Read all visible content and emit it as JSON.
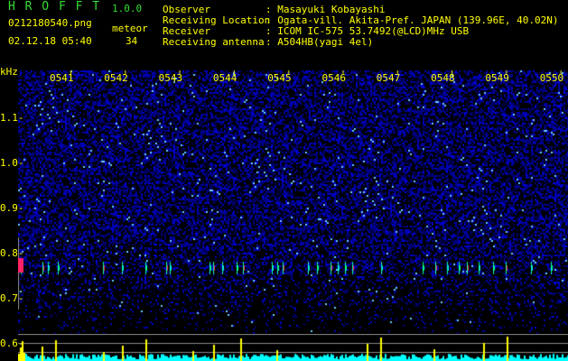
{
  "app": {
    "title": "H R O F F T",
    "version": "1.0.0"
  },
  "file": {
    "name": "0212180540.png",
    "datetime": "02.12.18 05:40"
  },
  "meteor": {
    "label": "meteor",
    "count": "34"
  },
  "info": [
    {
      "label": "Observer",
      "value": ": Masayuki Kobayashi"
    },
    {
      "label": "Receiving Location",
      "value": ": Ogata-vill. Akita-Pref. JAPAN (139.96E, 40.02N)"
    },
    {
      "label": "Receiver",
      "value": ": ICOM IC-575 53.7492(@LCD)MHz USB"
    },
    {
      "label": "Receiving antenna",
      "value": ": A504HB(yagi 4el)"
    }
  ],
  "axis": {
    "unit": "kHz",
    "y_ticks": [
      "1.1",
      "1.0",
      "0.9",
      "0.8",
      "0.7",
      "0.6"
    ],
    "time_ticks": [
      "0541",
      "0542",
      "0543",
      "0544",
      "0545",
      "0546",
      "0547",
      "0548",
      "0549",
      "0550"
    ]
  },
  "colors": {
    "text": "#ffff00",
    "title": "#33dd33",
    "histogram": "#00ffff",
    "meteor_bar": "#ffff00",
    "background_noise": "#0000aa"
  }
}
